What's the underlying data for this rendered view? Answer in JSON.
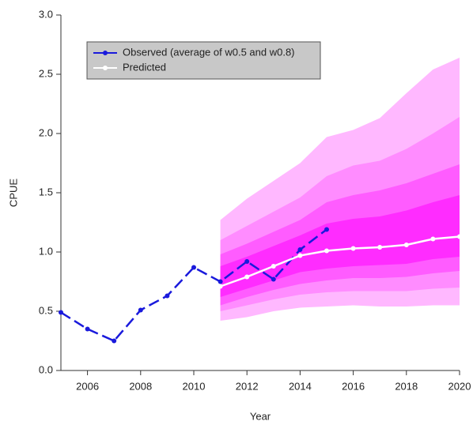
{
  "chart_data": {
    "type": "line",
    "xlabel": "Year",
    "ylabel": "CPUE",
    "xlim": [
      2005,
      2020
    ],
    "ylim": [
      0,
      3
    ],
    "xticks": [
      2006,
      2008,
      2010,
      2012,
      2014,
      2016,
      2018,
      2020
    ],
    "yticks": [
      {
        "value": 0,
        "label": "0.0"
      },
      0.5,
      {
        "value": 1,
        "label": "1.0"
      },
      1.5,
      {
        "value": 2,
        "label": "2.0"
      },
      2.5,
      {
        "value": 3,
        "label": "3.0"
      }
    ],
    "legend": "top-left",
    "series": [
      {
        "name": "Observed (average of w0.5 and w0.8)",
        "color": "#1a1adc",
        "dashed": true,
        "x": [
          2005,
          2006,
          2007,
          2008,
          2009,
          2010,
          2011,
          2012,
          2013,
          2014,
          2015
        ],
        "values": [
          0.49,
          0.35,
          0.25,
          0.51,
          0.63,
          0.87,
          0.75,
          0.92,
          0.77,
          1.02,
          1.19
        ]
      },
      {
        "name": "Predicted",
        "color": "#ffffff",
        "dashed": false,
        "x": [
          2011,
          2012,
          2013,
          2014,
          2015,
          2016,
          2017,
          2018,
          2019,
          2020
        ],
        "values": [
          0.71,
          0.79,
          0.88,
          0.97,
          1.01,
          1.03,
          1.04,
          1.06,
          1.11,
          1.13
        ]
      }
    ],
    "bands": {
      "x": [
        2011,
        2012,
        2013,
        2014,
        2015,
        2016,
        2017,
        2018,
        2019,
        2020
      ],
      "items": [
        {
          "color": "#ffb8ff",
          "upper": [
            1.27,
            1.45,
            1.6,
            1.75,
            1.97,
            2.03,
            2.13,
            2.34,
            2.54,
            2.64
          ],
          "lower": [
            0.42,
            0.45,
            0.5,
            0.53,
            0.54,
            0.55,
            0.54,
            0.54,
            0.55,
            0.55
          ]
        },
        {
          "color": "#ff8cff",
          "upper": [
            1.1,
            1.22,
            1.34,
            1.46,
            1.64,
            1.73,
            1.77,
            1.87,
            2.0,
            2.14
          ],
          "lower": [
            0.5,
            0.55,
            0.6,
            0.64,
            0.66,
            0.67,
            0.67,
            0.67,
            0.69,
            0.7
          ]
        },
        {
          "color": "#ff5cff",
          "upper": [
            0.98,
            1.07,
            1.17,
            1.27,
            1.42,
            1.48,
            1.52,
            1.58,
            1.66,
            1.74
          ],
          "lower": [
            0.55,
            0.62,
            0.68,
            0.73,
            0.76,
            0.78,
            0.78,
            0.79,
            0.82,
            0.84
          ]
        },
        {
          "color": "#ff2cff",
          "upper": [
            0.88,
            0.96,
            1.05,
            1.14,
            1.24,
            1.28,
            1.3,
            1.35,
            1.42,
            1.48
          ],
          "lower": [
            0.62,
            0.69,
            0.76,
            0.83,
            0.86,
            0.88,
            0.89,
            0.9,
            0.94,
            0.96
          ]
        }
      ]
    }
  }
}
